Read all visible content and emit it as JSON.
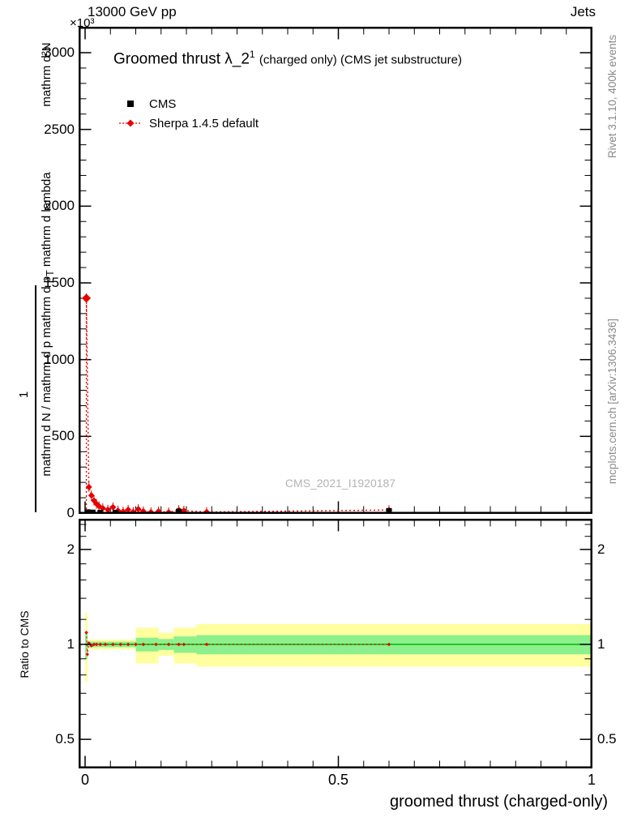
{
  "header": {
    "power_label": "×10³",
    "beam_label": "13000 GeV pp",
    "right_label": "Jets"
  },
  "plot": {
    "title_prefix": "Groomed thrust",
    "title_lambda": "λ_2",
    "title_sup": "1",
    "title_suffix": " (charged only) (CMS jet substructure)",
    "watermark": "CMS_2021_I1920187"
  },
  "legend": [
    {
      "label": "CMS",
      "marker": "black-filled-square"
    },
    {
      "label": "Sherpa 1.4.5 default",
      "marker": "red-diamond-dotted-line"
    }
  ],
  "axes": {
    "numerator": "mathrm d²N",
    "one": "1",
    "denominator_a": "mathrm d N / mathrm d p mathrm d p",
    "denominator_sub": "T",
    "denominator_b": " mathrm d lambda",
    "ratio_label": "Ratio to CMS",
    "x_label": "groomed thrust (charged-only)"
  },
  "side": {
    "right_top": "Rivet 3.1.10,  400k events",
    "right_bottom": "mcplots.cern.ch [arXiv:1306.3436]"
  },
  "chart_data": {
    "type": "line",
    "title": "Groomed thrust λ_2^1 (charged only) (CMS jet substructure)",
    "xlabel": "groomed thrust (charged-only)",
    "ylabel": "1 / (mathrm d N / mathrm d p_T) · mathrm d²N / (mathrm d p_T mathrm d lambda)",
    "y_scale": "×10³",
    "xlim": [
      0,
      1
    ],
    "ylim": [
      0,
      3170
    ],
    "yticks": [
      0,
      500,
      1000,
      1500,
      2000,
      2500,
      3000
    ],
    "y_minor_step": 100,
    "xticks": [
      0,
      0.5,
      1
    ],
    "x_minor_step": 0.05,
    "grid": false,
    "legend_position": "top-left",
    "series": [
      {
        "name": "CMS",
        "marker": "filled-square",
        "color": "#000000",
        "points": [
          [
            0.005,
            6
          ],
          [
            0.015,
            4
          ],
          [
            0.03,
            3
          ],
          [
            0.06,
            3
          ],
          [
            0.185,
            10
          ],
          [
            0.6,
            14
          ]
        ]
      },
      {
        "name": "Sherpa 1.4.5 default",
        "marker": "filled-diamond",
        "color": "#e60000",
        "line_style": "dotted",
        "points": [
          [
            0.0025,
            1400
          ],
          [
            0.0075,
            170
          ],
          [
            0.0125,
            115
          ],
          [
            0.0175,
            82
          ],
          [
            0.0225,
            60
          ],
          [
            0.0275,
            45
          ],
          [
            0.035,
            32
          ],
          [
            0.045,
            22
          ],
          [
            0.055,
            38
          ],
          [
            0.065,
            16
          ],
          [
            0.075,
            10
          ],
          [
            0.085,
            22
          ],
          [
            0.095,
            8
          ],
          [
            0.105,
            26
          ],
          [
            0.115,
            12
          ],
          [
            0.13,
            6
          ],
          [
            0.145,
            11
          ],
          [
            0.165,
            5
          ],
          [
            0.185,
            20
          ],
          [
            0.195,
            16
          ],
          [
            0.24,
            7
          ],
          [
            0.6,
            20
          ]
        ]
      }
    ],
    "ratio_panel": {
      "ylabel": "Ratio to CMS",
      "scale": "log",
      "ylim": [
        0.4,
        2.5
      ],
      "yticks": [
        0.5,
        1,
        2
      ],
      "yticks_minor": [
        0.6,
        0.7,
        0.8,
        0.9,
        1.2,
        1.4,
        1.6,
        1.8,
        2.2,
        2.4
      ],
      "band_colors": {
        "outer": "#ffffa0",
        "inner": "#8cf08c",
        "center_line": "#00b800"
      },
      "bands": [
        {
          "x0": 0.0,
          "x1": 0.005,
          "ylo": 0.76,
          "yhi": 1.26,
          "glo": 0.9,
          "ghi": 1.1
        },
        {
          "x0": 0.005,
          "x1": 0.1,
          "ylo": 0.965,
          "yhi": 1.035,
          "glo": 0.98,
          "ghi": 1.02
        },
        {
          "x0": 0.1,
          "x1": 0.145,
          "ylo": 0.87,
          "yhi": 1.13,
          "glo": 0.95,
          "ghi": 1.05
        },
        {
          "x0": 0.145,
          "x1": 0.175,
          "ylo": 0.92,
          "yhi": 1.09,
          "glo": 0.96,
          "ghi": 1.04
        },
        {
          "x0": 0.175,
          "x1": 0.22,
          "ylo": 0.87,
          "yhi": 1.13,
          "glo": 0.94,
          "ghi": 1.06
        },
        {
          "x0": 0.22,
          "x1": 1.0,
          "ylo": 0.85,
          "yhi": 1.16,
          "glo": 0.93,
          "ghi": 1.07
        }
      ],
      "line_color": "#e60000",
      "line": [
        [
          0.0025,
          1.09
        ],
        [
          0.0045,
          0.93
        ],
        [
          0.0075,
          1.01
        ],
        [
          0.0125,
          0.99
        ],
        [
          0.0175,
          1.0
        ],
        [
          0.0225,
          1.0
        ],
        [
          0.03,
          1.0
        ],
        [
          0.04,
          1.0
        ],
        [
          0.055,
          1.0
        ],
        [
          0.07,
          1.0
        ],
        [
          0.085,
          1.0
        ],
        [
          0.1,
          1.0
        ],
        [
          0.115,
          1.0
        ],
        [
          0.14,
          1.0
        ],
        [
          0.165,
          1.0
        ],
        [
          0.185,
          1.0
        ],
        [
          0.195,
          1.0
        ],
        [
          0.24,
          1.0
        ],
        [
          0.6,
          1.0
        ]
      ]
    }
  }
}
